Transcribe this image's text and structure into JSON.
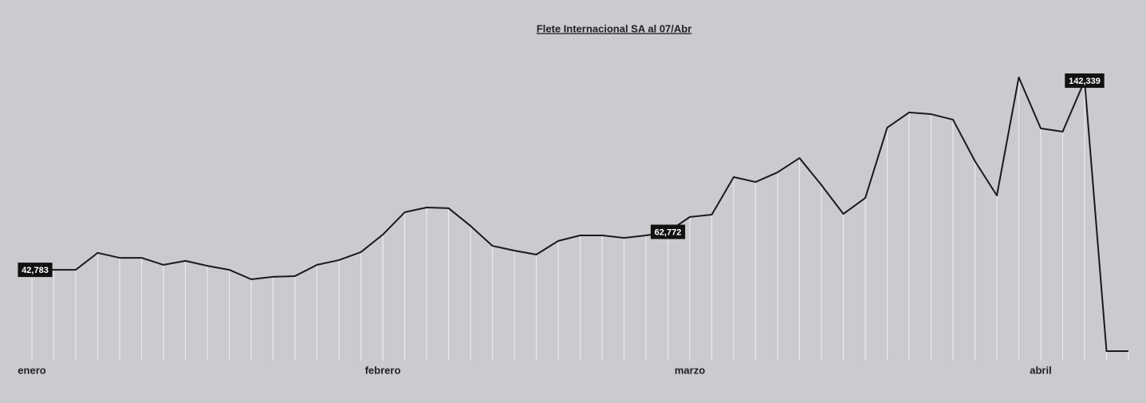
{
  "chart_data": {
    "type": "line",
    "title": "Flete Internacional SA al 07/Abr",
    "categories": [
      "enero",
      null,
      null,
      null,
      null,
      null,
      null,
      null,
      null,
      null,
      null,
      null,
      null,
      null,
      null,
      null,
      "febrero",
      null,
      null,
      null,
      null,
      null,
      null,
      null,
      null,
      null,
      null,
      null,
      null,
      null,
      "marzo",
      null,
      null,
      null,
      null,
      null,
      null,
      null,
      null,
      null,
      null,
      null,
      null,
      null,
      null,
      null,
      "abril",
      null,
      null,
      null,
      null
    ],
    "values": [
      42783,
      42800,
      42800,
      51700,
      49100,
      49100,
      45400,
      47500,
      44900,
      42800,
      37800,
      39100,
      39500,
      45400,
      47900,
      52100,
      61300,
      73100,
      75600,
      75200,
      65900,
      55400,
      52900,
      50800,
      58000,
      60900,
      60900,
      59600,
      60900,
      62772,
      70600,
      71800,
      91600,
      89000,
      94100,
      101600,
      87400,
      72200,
      80600,
      117600,
      125600,
      124700,
      121800,
      100000,
      81900,
      144100,
      117200,
      115500,
      142339,
      0,
      0
    ],
    "value_labels": [
      "42,783",
      null,
      null,
      null,
      null,
      null,
      null,
      null,
      null,
      null,
      null,
      null,
      null,
      null,
      null,
      null,
      null,
      null,
      null,
      null,
      null,
      null,
      null,
      null,
      null,
      null,
      null,
      null,
      null,
      "62,772",
      null,
      null,
      null,
      null,
      null,
      null,
      null,
      null,
      null,
      null,
      null,
      null,
      null,
      null,
      null,
      null,
      null,
      null,
      "142,339",
      null,
      null
    ],
    "color": "#1a1a1a",
    "ylim": [
      0,
      160000
    ]
  }
}
